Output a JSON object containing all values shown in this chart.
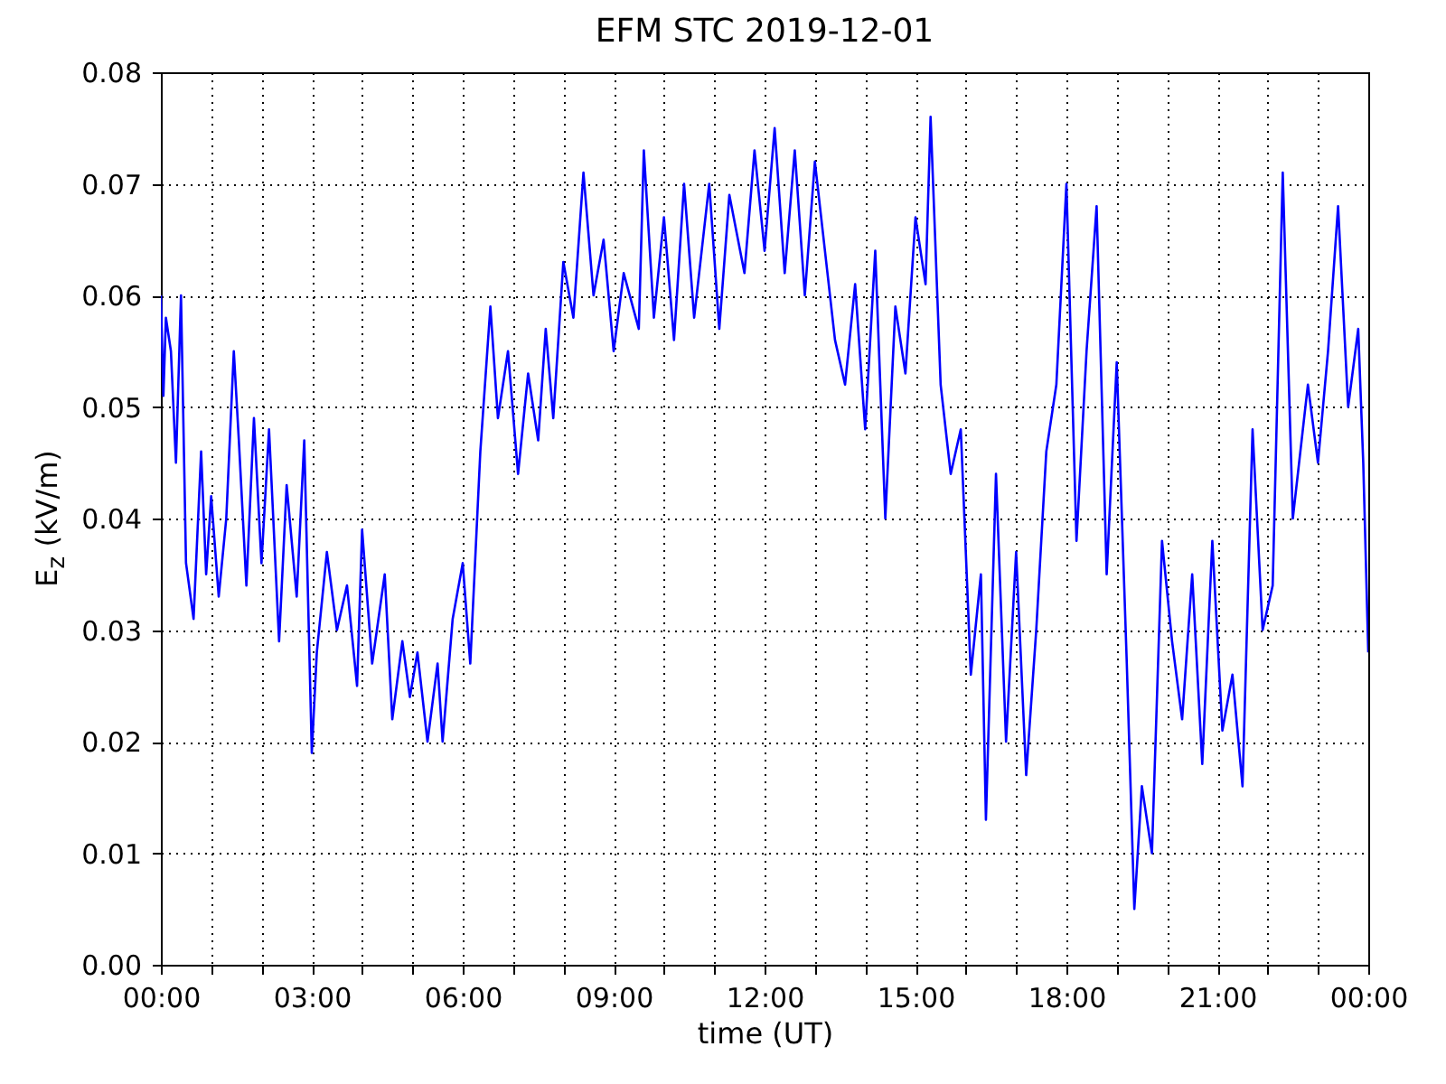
{
  "chart_data": {
    "type": "line",
    "title": "EFM STC    2019-12-01",
    "xlabel": "time (UT)",
    "ylabel": "E$_{z}$ (kV/m)",
    "x": [
      0,
      0.05,
      0.1,
      0.2,
      0.3,
      0.4,
      0.5,
      0.65,
      0.8,
      0.9,
      1.0,
      1.15,
      1.3,
      1.45,
      1.55,
      1.7,
      1.85,
      2.0,
      2.15,
      2.35,
      2.5,
      2.7,
      2.85,
      3.0,
      3.1,
      3.3,
      3.5,
      3.7,
      3.9,
      4.0,
      4.2,
      4.45,
      4.6,
      4.8,
      4.95,
      5.1,
      5.3,
      5.5,
      5.6,
      5.8,
      6.0,
      6.15,
      6.35,
      6.55,
      6.7,
      6.9,
      7.1,
      7.3,
      7.5,
      7.65,
      7.8,
      8.0,
      8.2,
      8.4,
      8.6,
      8.8,
      9.0,
      9.2,
      9.5,
      9.6,
      9.8,
      10.0,
      10.2,
      10.4,
      10.6,
      10.9,
      11.1,
      11.3,
      11.6,
      11.8,
      12.0,
      12.2,
      12.4,
      12.6,
      12.8,
      13.0,
      13.2,
      13.4,
      13.6,
      13.8,
      14.0,
      14.2,
      14.4,
      14.6,
      14.8,
      15.0,
      15.2,
      15.3,
      15.5,
      15.7,
      15.9,
      16.1,
      16.3,
      16.4,
      16.6,
      16.8,
      17.0,
      17.2,
      17.4,
      17.6,
      17.8,
      18.0,
      18.2,
      18.4,
      18.6,
      18.8,
      19.0,
      19.2,
      19.35,
      19.5,
      19.7,
      19.9,
      20.1,
      20.3,
      20.5,
      20.7,
      20.9,
      21.1,
      21.3,
      21.5,
      21.7,
      21.9,
      22.1,
      22.3,
      22.5,
      22.8,
      23.0,
      23.2,
      23.4,
      23.6,
      23.8,
      23.9,
      24.0
    ],
    "series": [
      {
        "color": "#0000ff",
        "values": [
          0.06,
          0.051,
          0.058,
          0.055,
          0.045,
          0.06,
          0.036,
          0.031,
          0.046,
          0.035,
          0.042,
          0.033,
          0.04,
          0.055,
          0.047,
          0.034,
          0.049,
          0.036,
          0.048,
          0.029,
          0.043,
          0.033,
          0.047,
          0.019,
          0.028,
          0.037,
          0.03,
          0.034,
          0.025,
          0.039,
          0.027,
          0.035,
          0.022,
          0.029,
          0.024,
          0.028,
          0.02,
          0.027,
          0.02,
          0.031,
          0.036,
          0.027,
          0.046,
          0.059,
          0.049,
          0.055,
          0.044,
          0.053,
          0.047,
          0.057,
          0.049,
          0.063,
          0.058,
          0.071,
          0.06,
          0.065,
          0.055,
          0.062,
          0.057,
          0.073,
          0.058,
          0.067,
          0.056,
          0.07,
          0.058,
          0.07,
          0.057,
          0.069,
          0.062,
          0.073,
          0.064,
          0.075,
          0.062,
          0.073,
          0.06,
          0.072,
          0.064,
          0.056,
          0.052,
          0.061,
          0.048,
          0.064,
          0.04,
          0.059,
          0.053,
          0.067,
          0.061,
          0.076,
          0.052,
          0.044,
          0.048,
          0.026,
          0.035,
          0.013,
          0.044,
          0.02,
          0.037,
          0.017,
          0.03,
          0.046,
          0.052,
          0.07,
          0.038,
          0.055,
          0.068,
          0.035,
          0.054,
          0.027,
          0.005,
          0.016,
          0.01,
          0.038,
          0.029,
          0.022,
          0.035,
          0.018,
          0.038,
          0.021,
          0.026,
          0.016,
          0.048,
          0.03,
          0.034,
          0.071,
          0.04,
          0.052,
          0.045,
          0.055,
          0.068,
          0.05,
          0.057,
          0.045,
          0.028
        ]
      }
    ],
    "xlim": [
      0,
      24
    ],
    "xticks": [
      {
        "value": 0,
        "label": "00:00"
      },
      {
        "value": 1,
        "label": null
      },
      {
        "value": 2,
        "label": null
      },
      {
        "value": 3,
        "label": "03:00"
      },
      {
        "value": 4,
        "label": null
      },
      {
        "value": 5,
        "label": null
      },
      {
        "value": 6,
        "label": "06:00"
      },
      {
        "value": 7,
        "label": null
      },
      {
        "value": 8,
        "label": null
      },
      {
        "value": 9,
        "label": "09:00"
      },
      {
        "value": 10,
        "label": null
      },
      {
        "value": 11,
        "label": null
      },
      {
        "value": 12,
        "label": "12:00"
      },
      {
        "value": 13,
        "label": null
      },
      {
        "value": 14,
        "label": null
      },
      {
        "value": 15,
        "label": "15:00"
      },
      {
        "value": 16,
        "label": null
      },
      {
        "value": 17,
        "label": null
      },
      {
        "value": 18,
        "label": "18:00"
      },
      {
        "value": 19,
        "label": null
      },
      {
        "value": 20,
        "label": null
      },
      {
        "value": 21,
        "label": "21:00"
      },
      {
        "value": 22,
        "label": null
      },
      {
        "value": 23,
        "label": null
      },
      {
        "value": 24,
        "label": "00:00"
      }
    ],
    "ylim": [
      0,
      0.08
    ],
    "yticks": [
      {
        "value": 0,
        "label": "0.00"
      },
      {
        "value": 0.01,
        "label": "0.01"
      },
      {
        "value": 0.02,
        "label": "0.02"
      },
      {
        "value": 0.03,
        "label": "0.03"
      },
      {
        "value": 0.04,
        "label": "0.04"
      },
      {
        "value": 0.05,
        "label": "0.05"
      },
      {
        "value": 0.06,
        "label": "0.06"
      },
      {
        "value": 0.07,
        "label": "0.07"
      },
      {
        "value": 0.08,
        "label": "0.08"
      }
    ],
    "grid": true,
    "line_style": "solid"
  }
}
